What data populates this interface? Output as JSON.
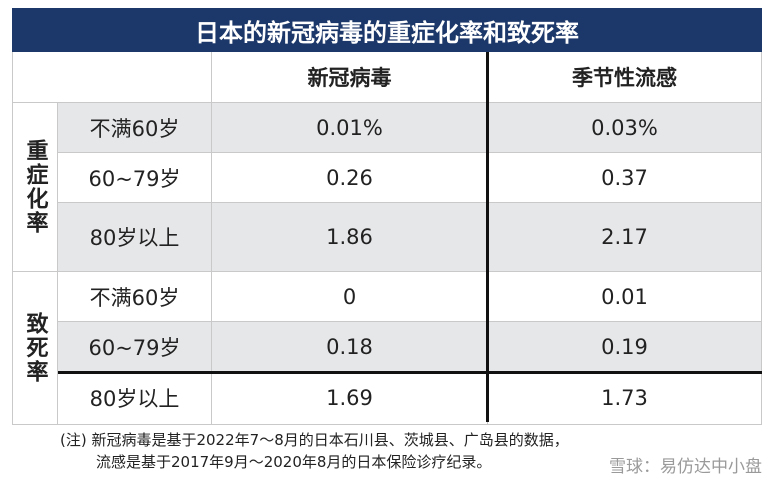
{
  "title": "日本的新冠病毒的重症化率和致死率",
  "columns": [
    "新冠病毒",
    "季节性流感"
  ],
  "groups": [
    {
      "label": "重症化率",
      "rows": [
        {
          "age": "不满60岁",
          "values": [
            "0.01%",
            "0.03%"
          ]
        },
        {
          "age": "60~79岁",
          "values": [
            "0.26",
            "0.37"
          ]
        },
        {
          "age": "80岁以上",
          "values": [
            "1.86",
            "2.17"
          ]
        }
      ]
    },
    {
      "label": "致死率",
      "rows": [
        {
          "age": "不满60岁",
          "values": [
            "0",
            "0.01"
          ]
        },
        {
          "age": "60~79岁",
          "values": [
            "0.18",
            "0.19"
          ]
        },
        {
          "age": "80岁以上",
          "values": [
            "1.69",
            "1.73"
          ]
        }
      ]
    }
  ],
  "note": [
    "(注) 新冠病毒是基于2022年7～8月的日本石川县、茨城县、广岛县的数据，",
    "流感是基于2017年9月～2020年8月的日本保险诊疗纪录。"
  ],
  "watermark": "雪球：易仿达中小盘"
}
